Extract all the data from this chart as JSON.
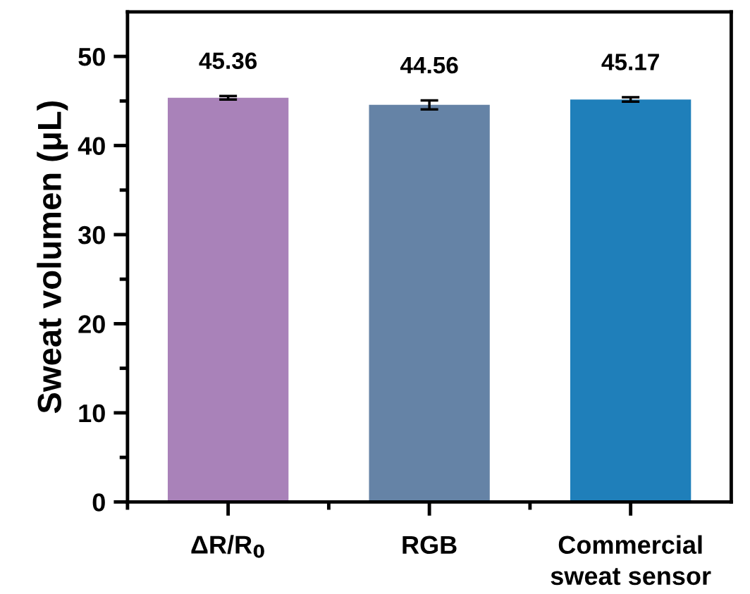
{
  "chart_data": {
    "type": "bar",
    "categories": [
      "ΔR/R$_{0}$",
      "RGB",
      "Commercial\nsweat sensor"
    ],
    "values": [
      45.36,
      44.56,
      45.17
    ],
    "errors": [
      0.2,
      0.5,
      0.25
    ],
    "colors": [
      "#a982b9",
      "#6583a6",
      "#1f7fba"
    ],
    "ylabel": "Sweat volumen (μL)",
    "ylim": [
      0,
      55
    ],
    "yticks": [
      0,
      {
        "value": 5,
        "label": null
      },
      10,
      {
        "value": 15,
        "label": null
      },
      20,
      {
        "value": 25,
        "label": null
      },
      30,
      {
        "value": 35,
        "label": null
      },
      40,
      {
        "value": 45,
        "label": null
      },
      50
    ],
    "data_labels": true,
    "grid": false,
    "legend": false
  }
}
